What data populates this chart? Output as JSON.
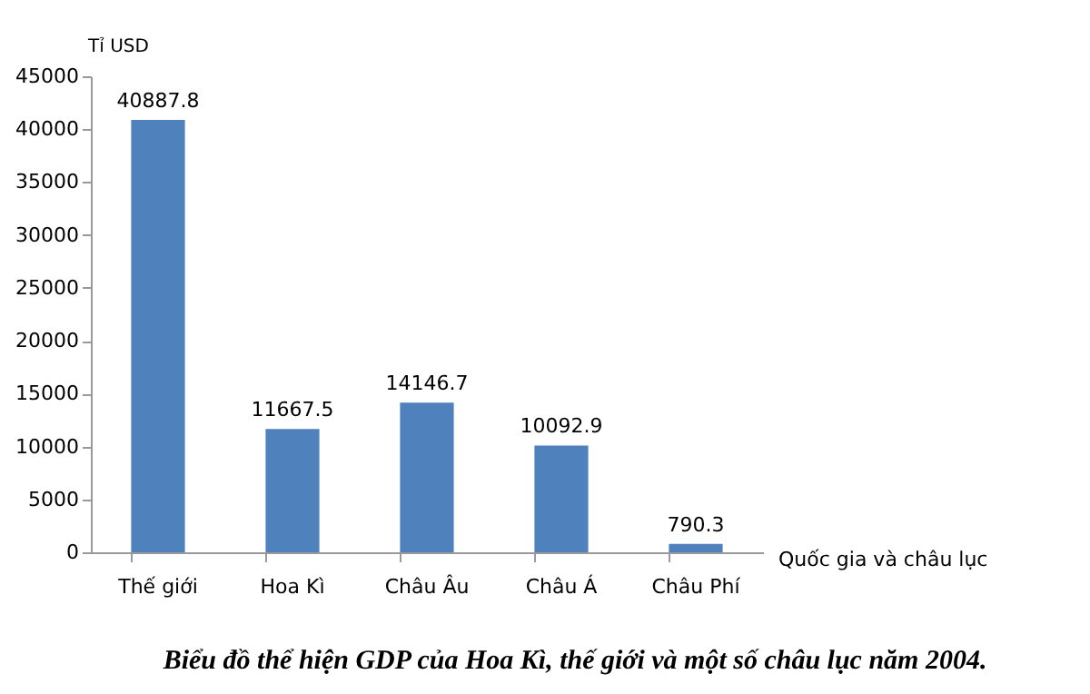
{
  "chart_data": {
    "type": "bar",
    "title": "Biểu đồ thể hiện GDP của Hoa Kì, thế giới và một số châu lục năm 2004.",
    "xlabel": "Quốc gia và châu lục",
    "ylabel": "Tỉ USD",
    "categories": [
      "Thế giới",
      "Hoa Kì",
      "Châu Âu",
      "Châu Á",
      "Châu Phí"
    ],
    "values": [
      40887.8,
      11667.5,
      14146.7,
      10092.9,
      790.3
    ],
    "color": "#4f81bd",
    "ylim": [
      0,
      45000
    ],
    "yticks": [
      0,
      5000,
      10000,
      15000,
      20000,
      25000,
      30000,
      35000,
      40000,
      45000
    ],
    "grid": false,
    "data_labels": true
  }
}
